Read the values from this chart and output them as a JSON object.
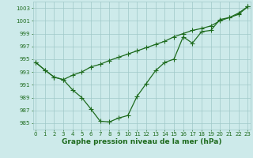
{
  "line_straight": {
    "x": [
      0,
      1,
      2,
      3,
      4,
      5,
      6,
      7,
      8,
      9,
      10,
      11,
      12,
      13,
      14,
      15,
      16,
      17,
      18,
      19,
      20,
      21,
      22,
      23
    ],
    "y": [
      994.5,
      993.3,
      992.2,
      991.8,
      992.5,
      993.0,
      993.8,
      994.2,
      994.8,
      995.3,
      995.8,
      996.3,
      996.8,
      997.3,
      997.8,
      998.5,
      999.0,
      999.5,
      999.8,
      1000.2,
      1001.0,
      1001.5,
      1002.0,
      1003.2
    ]
  },
  "line_vshape": {
    "x": [
      0,
      1,
      2,
      3,
      4,
      5,
      6,
      7,
      8,
      9,
      10,
      11,
      12,
      13,
      14,
      15,
      16,
      17,
      18,
      19,
      20,
      21,
      22,
      23
    ],
    "y": [
      994.5,
      993.3,
      992.2,
      991.8,
      990.2,
      989.0,
      987.2,
      985.3,
      985.2,
      985.8,
      986.2,
      989.2,
      991.2,
      993.2,
      994.5,
      995.0,
      998.5,
      997.5,
      999.3,
      999.5,
      1001.2,
      1001.5,
      1002.2,
      1003.2
    ]
  },
  "background_color": "#cdeaea",
  "grid_color": "#a0c8c8",
  "line_color": "#1e6b1e",
  "xlabel": "Graphe pression niveau de la mer (hPa)",
  "xlabel_fontsize": 6.5,
  "ylim": [
    984,
    1004
  ],
  "xlim": [
    -0.3,
    23.3
  ],
  "yticks": [
    985,
    987,
    989,
    991,
    993,
    995,
    997,
    999,
    1001,
    1003
  ],
  "xticks": [
    0,
    1,
    2,
    3,
    4,
    5,
    6,
    7,
    8,
    9,
    10,
    11,
    12,
    13,
    14,
    15,
    16,
    17,
    18,
    19,
    20,
    21,
    22,
    23
  ],
  "tick_fontsize": 5.0,
  "linewidth": 0.9,
  "markersize": 2.2
}
